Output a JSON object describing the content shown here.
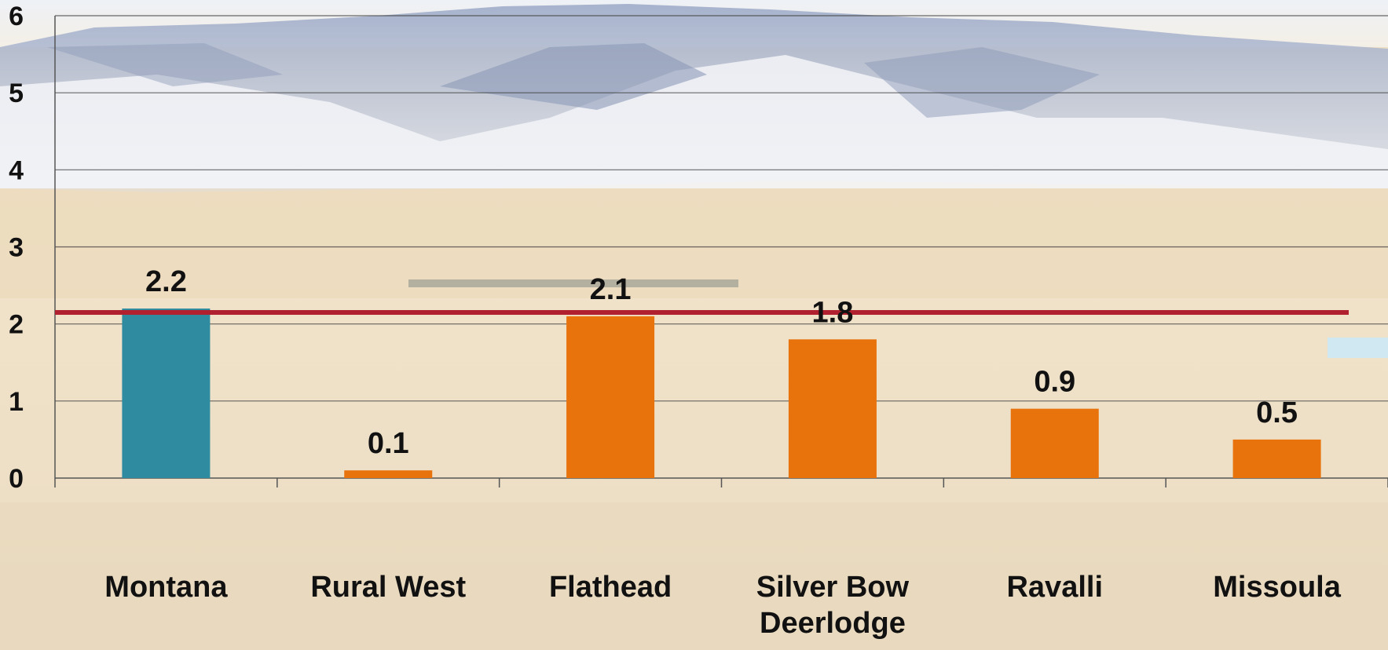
{
  "chart_data": {
    "type": "bar",
    "categories": [
      "Montana",
      "Rural West",
      "Flathead",
      "Silver Bow Deerlodge",
      "Ravalli",
      "Missoula"
    ],
    "category_lines": [
      [
        "Montana"
      ],
      [
        "Rural West"
      ],
      [
        "Flathead"
      ],
      [
        "Silver Bow",
        "Deerlodge"
      ],
      [
        "Ravalli"
      ],
      [
        "Missoula"
      ]
    ],
    "values": [
      2.2,
      0.1,
      2.1,
      1.8,
      0.9,
      0.5
    ],
    "data_labels": [
      "2.2",
      "0.1",
      "2.1",
      "1.8",
      "0.9",
      "0.5"
    ],
    "bar_colors": [
      "#2e8ba0",
      "#e8720c",
      "#e8720c",
      "#e8720c",
      "#e8720c",
      "#e8720c"
    ],
    "reference_line": {
      "value": 2.15,
      "color": "#b0202e"
    },
    "ylim": [
      0,
      6
    ],
    "yticks": [
      0,
      1,
      2,
      3,
      4,
      5,
      6
    ],
    "ytick_labels": [
      "0",
      "1",
      "2",
      "3",
      "4",
      "5",
      "6"
    ],
    "grid": true,
    "background": "landscape photo of snowy mountains and dry prairie",
    "title": "",
    "xlabel": "",
    "ylabel": ""
  }
}
